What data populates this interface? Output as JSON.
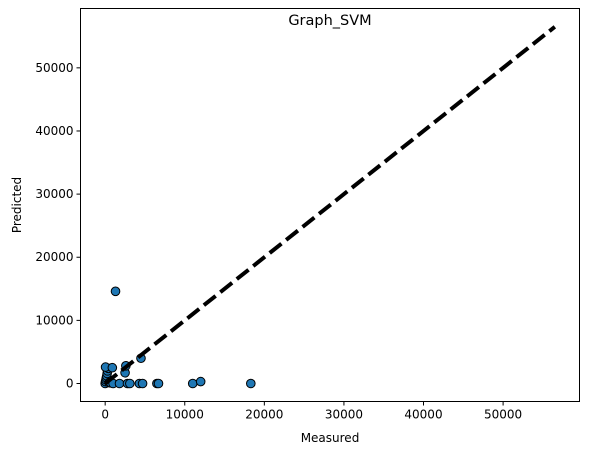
{
  "chart_data": {
    "type": "scatter",
    "title": "Graph_SVM",
    "xlabel": "Measured",
    "ylabel": "Predicted",
    "xlim": [
      -3100,
      59600
    ],
    "ylim": [
      -2850,
      59400
    ],
    "xticks": [
      0,
      10000,
      20000,
      30000,
      40000,
      50000
    ],
    "yticks": [
      0,
      10000,
      20000,
      30000,
      40000,
      50000
    ],
    "grid": false,
    "reference_line": {
      "x": [
        0,
        56500
      ],
      "y": [
        0,
        56500
      ],
      "style": "dashed",
      "color": "#000000"
    },
    "marker": {
      "color": "#1f77b4",
      "edge_color": "#000000"
    },
    "points": [
      {
        "x": 0,
        "y": 0
      },
      {
        "x": 50,
        "y": 300
      },
      {
        "x": 100,
        "y": 600
      },
      {
        "x": 150,
        "y": 900
      },
      {
        "x": 200,
        "y": 1200
      },
      {
        "x": 250,
        "y": 1600
      },
      {
        "x": 300,
        "y": 2000
      },
      {
        "x": 400,
        "y": 2400
      },
      {
        "x": 50,
        "y": 2600
      },
      {
        "x": 500,
        "y": 150
      },
      {
        "x": 700,
        "y": 100
      },
      {
        "x": 900,
        "y": 2500
      },
      {
        "x": 1000,
        "y": 0
      },
      {
        "x": 1300,
        "y": 14600
      },
      {
        "x": 1800,
        "y": 0
      },
      {
        "x": 2500,
        "y": 1700
      },
      {
        "x": 2600,
        "y": 2800
      },
      {
        "x": 2800,
        "y": 0
      },
      {
        "x": 3100,
        "y": 0
      },
      {
        "x": 4300,
        "y": 0
      },
      {
        "x": 4500,
        "y": 4000
      },
      {
        "x": 4700,
        "y": 0
      },
      {
        "x": 6500,
        "y": 0
      },
      {
        "x": 6700,
        "y": 0
      },
      {
        "x": 11000,
        "y": 0
      },
      {
        "x": 12000,
        "y": 300
      },
      {
        "x": 18300,
        "y": 0
      }
    ]
  }
}
